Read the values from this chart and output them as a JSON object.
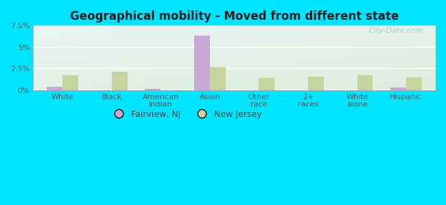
{
  "title": "Geographical mobility - Moved from different state",
  "categories": [
    "White",
    "Black",
    "American\nIndian",
    "Asian",
    "Other\nrace",
    "2+\nraces",
    "White\nalone",
    "Hispanic"
  ],
  "fairview_values": [
    0.38,
    0.0,
    0.13,
    6.35,
    0.0,
    0.0,
    0.0,
    0.28
  ],
  "nj_values": [
    1.72,
    2.1,
    0.0,
    2.72,
    1.42,
    1.58,
    1.72,
    1.52
  ],
  "fairview_color": "#c8a8d8",
  "nj_color": "#c8d4a0",
  "ylim": [
    0,
    7.5
  ],
  "yticks": [
    0,
    2.5,
    5.0,
    7.5
  ],
  "ytick_labels": [
    "0%",
    "2.5%",
    "5%",
    "7.5%"
  ],
  "bg_color_topleft": "#d8f0ee",
  "bg_color_bottomright": "#ddeedd",
  "outer_bg": "#00e5ff",
  "bar_width": 0.32,
  "legend_fairview": "Fairview, NJ",
  "legend_nj": "New Jersey",
  "watermark": "City-Data.com"
}
